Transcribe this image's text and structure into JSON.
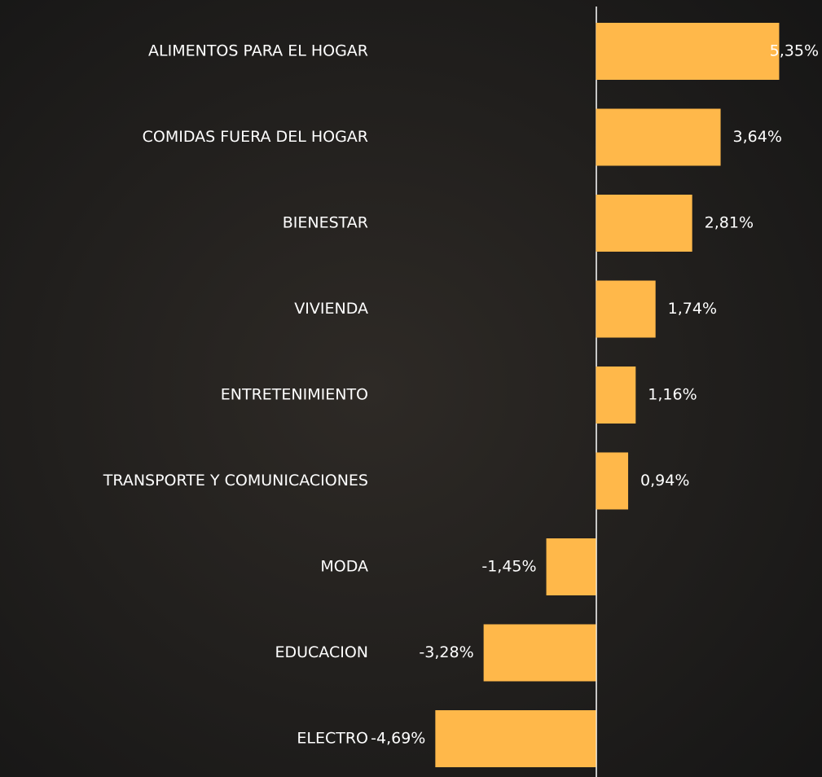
{
  "chart_data": {
    "type": "bar",
    "orientation": "horizontal",
    "categories": [
      "ALIMENTOS PARA EL HOGAR",
      "COMIDAS FUERA DEL HOGAR",
      "BIENESTAR",
      "VIVIENDA",
      "ENTRETENIMIENTO",
      "TRANSPORTE Y COMUNICACIONES",
      "MODA",
      "EDUCACION",
      "ELECTRO"
    ],
    "values": [
      5.35,
      3.64,
      2.81,
      1.74,
      1.16,
      0.94,
      -1.45,
      -3.28,
      -4.69
    ],
    "value_labels": [
      "5,35%",
      "3,64%",
      "2,81%",
      "1,74%",
      "1,16%",
      "0,94%",
      "-1,45%",
      "-3,28%",
      "-4,69%"
    ],
    "color": "#ffb84a",
    "xlim": [
      -17.4,
      6.6
    ]
  }
}
